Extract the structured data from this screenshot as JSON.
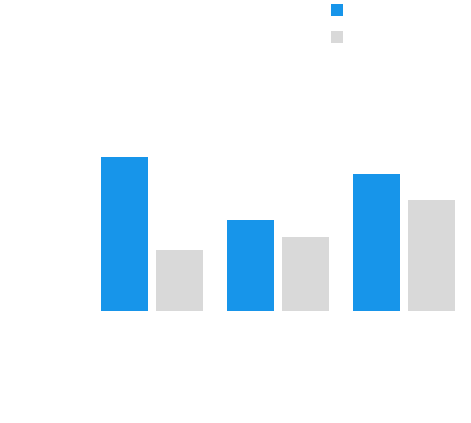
{
  "chart_data": {
    "type": "bar",
    "categories": [
      "",
      "",
      ""
    ],
    "series": [
      {
        "values": [
          154,
          91,
          137
        ]
      },
      {
        "values": [
          61,
          74,
          111
        ]
      }
    ],
    "ylim": [
      0,
      154
    ],
    "grid": false,
    "legend": "top-right"
  },
  "colors": {
    "series_primary": "#1795ea",
    "series_secondary": "#d9d9d9",
    "background": "#ffffff"
  }
}
